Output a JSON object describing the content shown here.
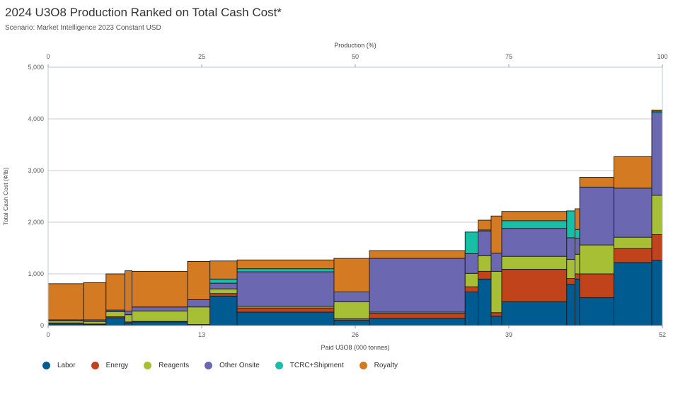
{
  "header": {
    "title": "2024 U3O8 Production Ranked on Total Cash Cost*",
    "subtitle": "Scenario: Market Intelligence 2023 Constant USD"
  },
  "chart_data": {
    "type": "bar",
    "subtype": "cost-curve (variable-width stacked bars)",
    "title": "2024 U3O8 Production Ranked on Total Cash Cost*",
    "subtitle": "Scenario: Market Intelligence 2023 Constant USD",
    "ylabel": "Total Cash Cost (¢/lb)",
    "xlabel": "Paid U3O8 (000 tonnes)",
    "x2label": "Production (%)",
    "ylim": [
      0,
      5000
    ],
    "xlim": [
      0,
      52
    ],
    "x2lim": [
      0,
      100
    ],
    "yticks": [
      "0",
      "1,000",
      "2,000",
      "3,000",
      "4,000",
      "5,000"
    ],
    "xticks": [
      "0",
      "13",
      "26",
      "39",
      "52"
    ],
    "x2ticks": [
      "0",
      "25",
      "50",
      "75",
      "100"
    ],
    "grid": true,
    "legend_position": "bottom",
    "series": [
      {
        "name": "Labor",
        "color": "#005b91"
      },
      {
        "name": "Energy",
        "color": "#c0431b"
      },
      {
        "name": "Reagents",
        "color": "#a6bf35"
      },
      {
        "name": "Other Onsite",
        "color": "#6b67b0"
      },
      {
        "name": "TCRC+Shipment",
        "color": "#18bfa6"
      },
      {
        "name": "Royalty",
        "color": "#d47a23"
      }
    ],
    "bars": [
      {
        "x0": 0.0,
        "x1": 3.0,
        "values": [
          30,
          20,
          40,
          20,
          0,
          700
        ]
      },
      {
        "x0": 3.0,
        "x1": 4.9,
        "values": [
          20,
          10,
          50,
          30,
          0,
          720
        ]
      },
      {
        "x0": 4.9,
        "x1": 6.5,
        "values": [
          150,
          20,
          100,
          30,
          0,
          700
        ]
      },
      {
        "x0": 6.5,
        "x1": 7.1,
        "values": [
          50,
          20,
          140,
          70,
          0,
          780
        ]
      },
      {
        "x0": 7.1,
        "x1": 11.8,
        "values": [
          70,
          10,
          200,
          80,
          0,
          690
        ]
      },
      {
        "x0": 11.8,
        "x1": 13.7,
        "values": [
          0,
          20,
          340,
          140,
          0,
          740
        ]
      },
      {
        "x0": 13.7,
        "x1": 16.0,
        "values": [
          570,
          50,
          90,
          110,
          80,
          350
        ]
      },
      {
        "x0": 16.0,
        "x1": 24.2,
        "values": [
          260,
          80,
          30,
          670,
          60,
          170
        ]
      },
      {
        "x0": 24.2,
        "x1": 27.2,
        "values": [
          100,
          30,
          330,
          190,
          0,
          650
        ]
      },
      {
        "x0": 27.2,
        "x1": 35.3,
        "values": [
          140,
          100,
          20,
          1040,
          0,
          150
        ]
      },
      {
        "x0": 35.3,
        "x1": 36.4,
        "values": [
          650,
          100,
          260,
          380,
          420,
          0
        ]
      },
      {
        "x0": 36.4,
        "x1": 37.5,
        "values": [
          900,
          150,
          300,
          480,
          20,
          190
        ]
      },
      {
        "x0": 37.5,
        "x1": 38.4,
        "values": [
          180,
          70,
          800,
          350,
          0,
          720
        ]
      },
      {
        "x0": 38.4,
        "x1": 43.9,
        "values": [
          460,
          630,
          250,
          540,
          150,
          180
        ]
      },
      {
        "x0": 43.9,
        "x1": 44.6,
        "values": [
          800,
          110,
          370,
          420,
          520,
          0
        ]
      },
      {
        "x0": 44.6,
        "x1": 45.0,
        "values": [
          900,
          100,
          380,
          310,
          170,
          400
        ]
      },
      {
        "x0": 45.0,
        "x1": 47.9,
        "values": [
          540,
          460,
          560,
          1120,
          0,
          190
        ]
      },
      {
        "x0": 47.9,
        "x1": 51.1,
        "values": [
          1220,
          270,
          220,
          950,
          0,
          610
        ]
      },
      {
        "x0": 51.1,
        "x1": 52.0,
        "values": [
          1260,
          500,
          760,
          1600,
          30,
          20
        ]
      }
    ]
  }
}
